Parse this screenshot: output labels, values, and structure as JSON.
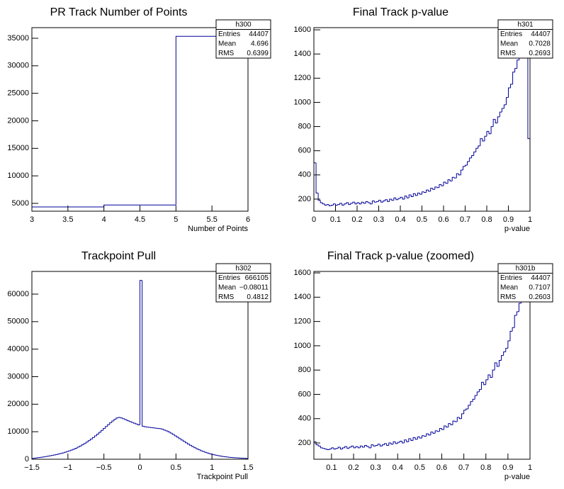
{
  "chart_data": [
    {
      "type": "histogram",
      "title": "PR Track Number of Points",
      "x_label": "Number of Points",
      "line_color": "#000099",
      "bins": [
        3,
        4,
        5,
        6
      ],
      "values": [
        4355,
        4700,
        35352
      ],
      "xlim": [
        3,
        6
      ],
      "xticks": [
        3,
        3.5,
        4,
        4.5,
        5,
        5.5,
        6
      ],
      "ylim": [
        3580,
        36930
      ],
      "yticks": [
        5000,
        10000,
        15000,
        20000,
        25000,
        30000,
        35000
      ],
      "stats": {
        "name": "h300",
        "rows": [
          {
            "label": "Entries",
            "value": 44407
          },
          {
            "label": "Mean",
            "value": 4.696
          },
          {
            "label": "RMS",
            "value": 0.6399
          }
        ]
      }
    },
    {
      "type": "histogram",
      "title": "Final Track p-value",
      "x_label": "p-value",
      "line_color": "#000099",
      "bins": [
        0,
        0.01,
        0.02,
        0.03,
        0.04,
        0.05,
        0.06,
        0.07,
        0.08,
        0.09,
        0.1,
        0.11,
        0.12,
        0.13,
        0.14,
        0.15,
        0.16,
        0.17,
        0.18,
        0.19,
        0.2,
        0.21,
        0.22,
        0.23,
        0.24,
        0.25,
        0.26,
        0.27,
        0.28,
        0.29,
        0.3,
        0.31,
        0.32,
        0.33,
        0.34,
        0.35,
        0.36,
        0.37,
        0.38,
        0.39,
        0.4,
        0.41,
        0.42,
        0.43,
        0.44,
        0.45,
        0.46,
        0.47,
        0.48,
        0.49,
        0.5,
        0.51,
        0.52,
        0.53,
        0.54,
        0.55,
        0.56,
        0.57,
        0.58,
        0.59,
        0.6,
        0.61,
        0.62,
        0.63,
        0.64,
        0.65,
        0.66,
        0.67,
        0.68,
        0.69,
        0.7,
        0.71,
        0.72,
        0.73,
        0.74,
        0.75,
        0.76,
        0.77,
        0.78,
        0.79,
        0.8,
        0.81,
        0.82,
        0.83,
        0.84,
        0.85,
        0.86,
        0.87,
        0.88,
        0.89,
        0.9,
        0.91,
        0.92,
        0.93,
        0.94,
        0.95,
        0.96,
        0.97,
        0.98,
        0.99,
        1
      ],
      "values": [
        500,
        250,
        190,
        170,
        160,
        150,
        155,
        145,
        150,
        160,
        150,
        155,
        165,
        150,
        160,
        170,
        155,
        165,
        175,
        160,
        170,
        160,
        175,
        165,
        180,
        170,
        160,
        185,
        175,
        180,
        190,
        175,
        185,
        195,
        180,
        200,
        190,
        210,
        195,
        205,
        215,
        200,
        225,
        210,
        235,
        220,
        245,
        230,
        250,
        240,
        260,
        255,
        275,
        265,
        290,
        280,
        300,
        295,
        320,
        310,
        340,
        330,
        360,
        350,
        380,
        375,
        410,
        400,
        440,
        470,
        480,
        510,
        540,
        560,
        590,
        620,
        640,
        700,
        680,
        720,
        760,
        740,
        800,
        860,
        830,
        880,
        920,
        950,
        980,
        1040,
        1120,
        1150,
        1250,
        1280,
        1350,
        1450,
        1650,
        1600,
        1480,
        700
      ],
      "xlim": [
        0,
        1
      ],
      "xticks": [
        0,
        0.1,
        0.2,
        0.3,
        0.4,
        0.5,
        0.6,
        0.7,
        0.8,
        0.9,
        1
      ],
      "ylim": [
        100,
        1618
      ],
      "yticks": [
        200,
        400,
        600,
        800,
        1000,
        1200,
        1400,
        1600
      ],
      "stats": {
        "name": "h301",
        "rows": [
          {
            "label": "Entries",
            "value": 44407
          },
          {
            "label": "Mean",
            "value": 0.7028
          },
          {
            "label": "RMS",
            "value": 0.2693
          }
        ]
      }
    },
    {
      "type": "histogram",
      "title": "Trackpoint Pull",
      "x_label": "Trackpoint Pull",
      "line_color": "#000099",
      "bins": [
        -1.5,
        -1.47,
        -1.44,
        -1.41,
        -1.38,
        -1.35,
        -1.32,
        -1.29,
        -1.26,
        -1.23,
        -1.2,
        -1.17,
        -1.14,
        -1.11,
        -1.08,
        -1.05,
        -1.02,
        -0.99,
        -0.96,
        -0.93,
        -0.9,
        -0.87,
        -0.84,
        -0.81,
        -0.78,
        -0.75,
        -0.72,
        -0.69,
        -0.66,
        -0.63,
        -0.6,
        -0.57,
        -0.54,
        -0.51,
        -0.48,
        -0.45,
        -0.42,
        -0.39,
        -0.36,
        -0.33,
        -0.3,
        -0.27,
        -0.24,
        -0.21,
        -0.18,
        -0.15,
        -0.12,
        -0.09,
        -0.06,
        -0.03,
        0,
        0.03,
        0.06,
        0.09,
        0.12,
        0.15,
        0.18,
        0.21,
        0.24,
        0.27,
        0.3,
        0.33,
        0.36,
        0.39,
        0.42,
        0.45,
        0.48,
        0.51,
        0.54,
        0.57,
        0.6,
        0.63,
        0.66,
        0.69,
        0.72,
        0.75,
        0.78,
        0.81,
        0.84,
        0.87,
        0.9,
        0.93,
        0.96,
        0.99,
        1.02,
        1.05,
        1.08,
        1.11,
        1.14,
        1.17,
        1.2,
        1.23,
        1.26,
        1.29,
        1.32,
        1.35,
        1.38,
        1.41,
        1.44,
        1.47,
        1.5
      ],
      "values": [
        300,
        400,
        500,
        600,
        700,
        850,
        950,
        1100,
        1250,
        1400,
        1550,
        1700,
        1900,
        2100,
        2300,
        2550,
        2800,
        3050,
        3350,
        3650,
        4000,
        4400,
        4800,
        5250,
        5700,
        6200,
        6750,
        7300,
        7900,
        8500,
        9100,
        9800,
        10500,
        11200,
        11900,
        12600,
        13300,
        13900,
        14500,
        15000,
        15200,
        15000,
        14700,
        14400,
        14000,
        13700,
        13400,
        13100,
        12800,
        12500,
        65000,
        12000,
        11800,
        11700,
        11600,
        11500,
        11400,
        11300,
        11200,
        11100,
        10900,
        10600,
        10300,
        9900,
        9500,
        9000,
        8500,
        8000,
        7500,
        7000,
        6500,
        6000,
        5500,
        5050,
        4600,
        4200,
        3800,
        3450,
        3100,
        2800,
        2500,
        2250,
        2000,
        1800,
        1600,
        1450,
        1300,
        1150,
        1000,
        900,
        800,
        720,
        650,
        580,
        520,
        470,
        420,
        380,
        340,
        300
      ],
      "xlim": [
        -1.5,
        1.5
      ],
      "xticks": [
        {
          "value": -1.5,
          "label": "−1.5"
        },
        {
          "value": -1,
          "label": "−1"
        },
        {
          "value": -0.5,
          "label": "−0.5"
        },
        0,
        0.5,
        1,
        1.5
      ],
      "ylim": [
        0,
        68240
      ],
      "yticks": [
        0,
        10000,
        20000,
        30000,
        40000,
        50000,
        60000
      ],
      "stats": {
        "name": "h302",
        "rows": [
          {
            "label": "Entries",
            "value": 666105
          },
          {
            "label": "Mean",
            "value": {
              "value": -0.08011,
              "label": "−0.08011"
            }
          },
          {
            "label": "RMS",
            "value": 0.4812
          }
        ]
      }
    },
    {
      "type": "histogram",
      "title": "Final Track p-value (zoomed)",
      "x_label": "p-value",
      "line_color": "#000099",
      "bins": [
        0.02,
        0.03,
        0.04,
        0.05,
        0.06,
        0.07,
        0.08,
        0.09,
        0.1,
        0.11,
        0.12,
        0.13,
        0.14,
        0.15,
        0.16,
        0.17,
        0.18,
        0.19,
        0.2,
        0.21,
        0.22,
        0.23,
        0.24,
        0.25,
        0.26,
        0.27,
        0.28,
        0.29,
        0.3,
        0.31,
        0.32,
        0.33,
        0.34,
        0.35,
        0.36,
        0.37,
        0.38,
        0.39,
        0.4,
        0.41,
        0.42,
        0.43,
        0.44,
        0.45,
        0.46,
        0.47,
        0.48,
        0.49,
        0.5,
        0.51,
        0.52,
        0.53,
        0.54,
        0.55,
        0.56,
        0.57,
        0.58,
        0.59,
        0.6,
        0.61,
        0.62,
        0.63,
        0.64,
        0.65,
        0.66,
        0.67,
        0.68,
        0.69,
        0.7,
        0.71,
        0.72,
        0.73,
        0.74,
        0.75,
        0.76,
        0.77,
        0.78,
        0.79,
        0.8,
        0.81,
        0.82,
        0.83,
        0.84,
        0.85,
        0.86,
        0.87,
        0.88,
        0.89,
        0.9,
        0.91,
        0.92,
        0.93,
        0.94,
        0.95,
        0.96,
        0.97,
        0.98,
        0.99,
        1
      ],
      "values": [
        210,
        185,
        175,
        160,
        155,
        150,
        145,
        150,
        160,
        150,
        155,
        165,
        150,
        160,
        170,
        155,
        165,
        175,
        160,
        170,
        160,
        175,
        165,
        180,
        170,
        160,
        185,
        175,
        180,
        190,
        175,
        185,
        195,
        180,
        200,
        190,
        210,
        195,
        205,
        215,
        200,
        225,
        210,
        235,
        220,
        245,
        230,
        250,
        240,
        260,
        255,
        275,
        265,
        290,
        280,
        300,
        295,
        320,
        310,
        340,
        330,
        360,
        350,
        380,
        375,
        410,
        400,
        440,
        470,
        480,
        510,
        540,
        560,
        590,
        620,
        640,
        700,
        680,
        720,
        760,
        740,
        800,
        860,
        830,
        880,
        920,
        950,
        980,
        1040,
        1120,
        1150,
        1250,
        1280,
        1350,
        1450,
        1650,
        1600,
        1480,
        700
      ],
      "xlim": [
        0.02,
        1
      ],
      "xticks": [
        0.1,
        0.2,
        0.3,
        0.4,
        0.5,
        0.6,
        0.7,
        0.8,
        0.9,
        1
      ],
      "ylim": [
        66,
        1612
      ],
      "yticks": [
        200,
        400,
        600,
        800,
        1000,
        1200,
        1400,
        1600
      ],
      "stats": {
        "name": "h301b",
        "rows": [
          {
            "label": "Entries",
            "value": 44407
          },
          {
            "label": "Mean",
            "value": 0.7107
          },
          {
            "label": "RMS",
            "value": 0.2603
          }
        ]
      }
    }
  ]
}
